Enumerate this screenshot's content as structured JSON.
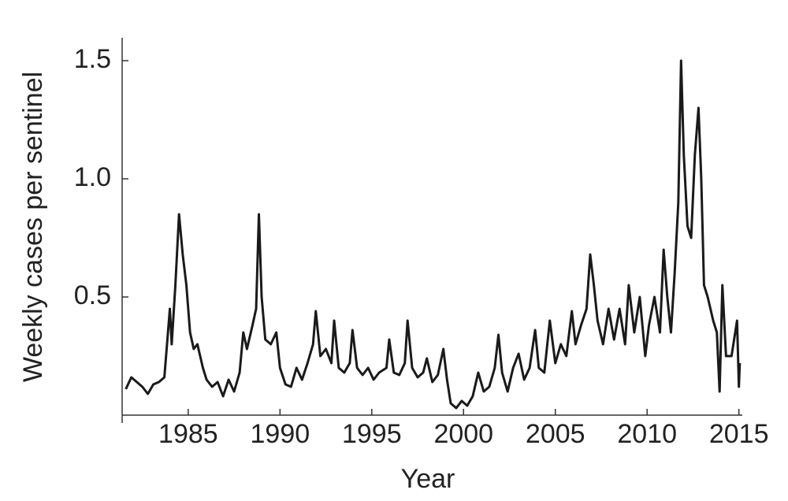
{
  "chart_data": {
    "type": "line",
    "xlabel": "Year",
    "ylabel": "Weekly cases per sentinel",
    "xlim": [
      1981.4,
      2015.1
    ],
    "ylim": [
      0,
      1.6
    ],
    "xticks": [
      1985,
      1990,
      1995,
      2000,
      2005,
      2010,
      2015
    ],
    "yticks": [
      {
        "value": 0.5,
        "label": "0.5"
      },
      {
        "value": 1,
        "label": "1.0"
      },
      {
        "value": 1.5,
        "label": "1.5"
      }
    ],
    "series": [
      {
        "color": "#1a1a1a",
        "x": [
          1981.6,
          1981.9,
          1982.2,
          1982.5,
          1982.8,
          1983.1,
          1983.4,
          1983.7,
          1984.0,
          1984.1,
          1984.3,
          1984.5,
          1984.7,
          1984.9,
          1985.1,
          1985.3,
          1985.5,
          1985.8,
          1986.0,
          1986.3,
          1986.6,
          1986.9,
          1987.2,
          1987.5,
          1987.8,
          1988.0,
          1988.2,
          1988.5,
          1988.7,
          1988.85,
          1989.0,
          1989.2,
          1989.5,
          1989.8,
          1990.0,
          1990.3,
          1990.6,
          1990.9,
          1991.2,
          1991.5,
          1991.8,
          1991.95,
          1992.2,
          1992.5,
          1992.8,
          1992.95,
          1993.2,
          1993.5,
          1993.8,
          1993.95,
          1994.2,
          1994.5,
          1994.8,
          1995.1,
          1995.4,
          1995.8,
          1995.95,
          1996.2,
          1996.5,
          1996.8,
          1996.95,
          1997.2,
          1997.5,
          1997.8,
          1998.0,
          1998.3,
          1998.6,
          1998.9,
          1999.1,
          1999.3,
          1999.6,
          1999.9,
          2000.2,
          2000.5,
          2000.8,
          2001.1,
          2001.4,
          2001.7,
          2001.9,
          2002.1,
          2002.4,
          2002.7,
          2003.0,
          2003.3,
          2003.6,
          2003.9,
          2004.1,
          2004.4,
          2004.7,
          2005.0,
          2005.3,
          2005.6,
          2005.9,
          2006.1,
          2006.4,
          2006.7,
          2006.9,
          2007.1,
          2007.3,
          2007.6,
          2007.9,
          2008.2,
          2008.5,
          2008.8,
          2009.0,
          2009.3,
          2009.6,
          2009.9,
          2010.1,
          2010.4,
          2010.7,
          2010.9,
          2011.1,
          2011.3,
          2011.5,
          2011.7,
          2011.85,
          2012.0,
          2012.2,
          2012.4,
          2012.6,
          2012.8,
          2012.95,
          2013.1,
          2013.3,
          2013.6,
          2013.8,
          2013.95,
          2014.1,
          2014.3,
          2014.6,
          2014.9,
          2015.0,
          2015.05
        ],
        "values": [
          0.11,
          0.16,
          0.14,
          0.12,
          0.09,
          0.13,
          0.14,
          0.16,
          0.45,
          0.3,
          0.55,
          0.85,
          0.68,
          0.55,
          0.35,
          0.28,
          0.3,
          0.2,
          0.15,
          0.12,
          0.14,
          0.08,
          0.15,
          0.1,
          0.18,
          0.35,
          0.28,
          0.38,
          0.45,
          0.85,
          0.5,
          0.32,
          0.3,
          0.35,
          0.2,
          0.13,
          0.12,
          0.2,
          0.15,
          0.22,
          0.3,
          0.44,
          0.25,
          0.28,
          0.22,
          0.4,
          0.2,
          0.18,
          0.22,
          0.36,
          0.2,
          0.17,
          0.2,
          0.15,
          0.18,
          0.2,
          0.32,
          0.18,
          0.17,
          0.22,
          0.4,
          0.2,
          0.16,
          0.18,
          0.24,
          0.14,
          0.17,
          0.28,
          0.15,
          0.05,
          0.03,
          0.06,
          0.04,
          0.08,
          0.18,
          0.1,
          0.12,
          0.2,
          0.34,
          0.18,
          0.1,
          0.2,
          0.26,
          0.15,
          0.2,
          0.36,
          0.2,
          0.18,
          0.4,
          0.22,
          0.3,
          0.25,
          0.44,
          0.3,
          0.38,
          0.45,
          0.68,
          0.55,
          0.4,
          0.3,
          0.45,
          0.32,
          0.45,
          0.3,
          0.55,
          0.35,
          0.5,
          0.25,
          0.38,
          0.5,
          0.35,
          0.7,
          0.5,
          0.35,
          0.6,
          0.9,
          1.5,
          1.1,
          0.8,
          0.75,
          1.1,
          1.3,
          1.0,
          0.55,
          0.5,
          0.4,
          0.35,
          0.1,
          0.55,
          0.25,
          0.25,
          0.4,
          0.12,
          0.22
        ]
      }
    ]
  }
}
